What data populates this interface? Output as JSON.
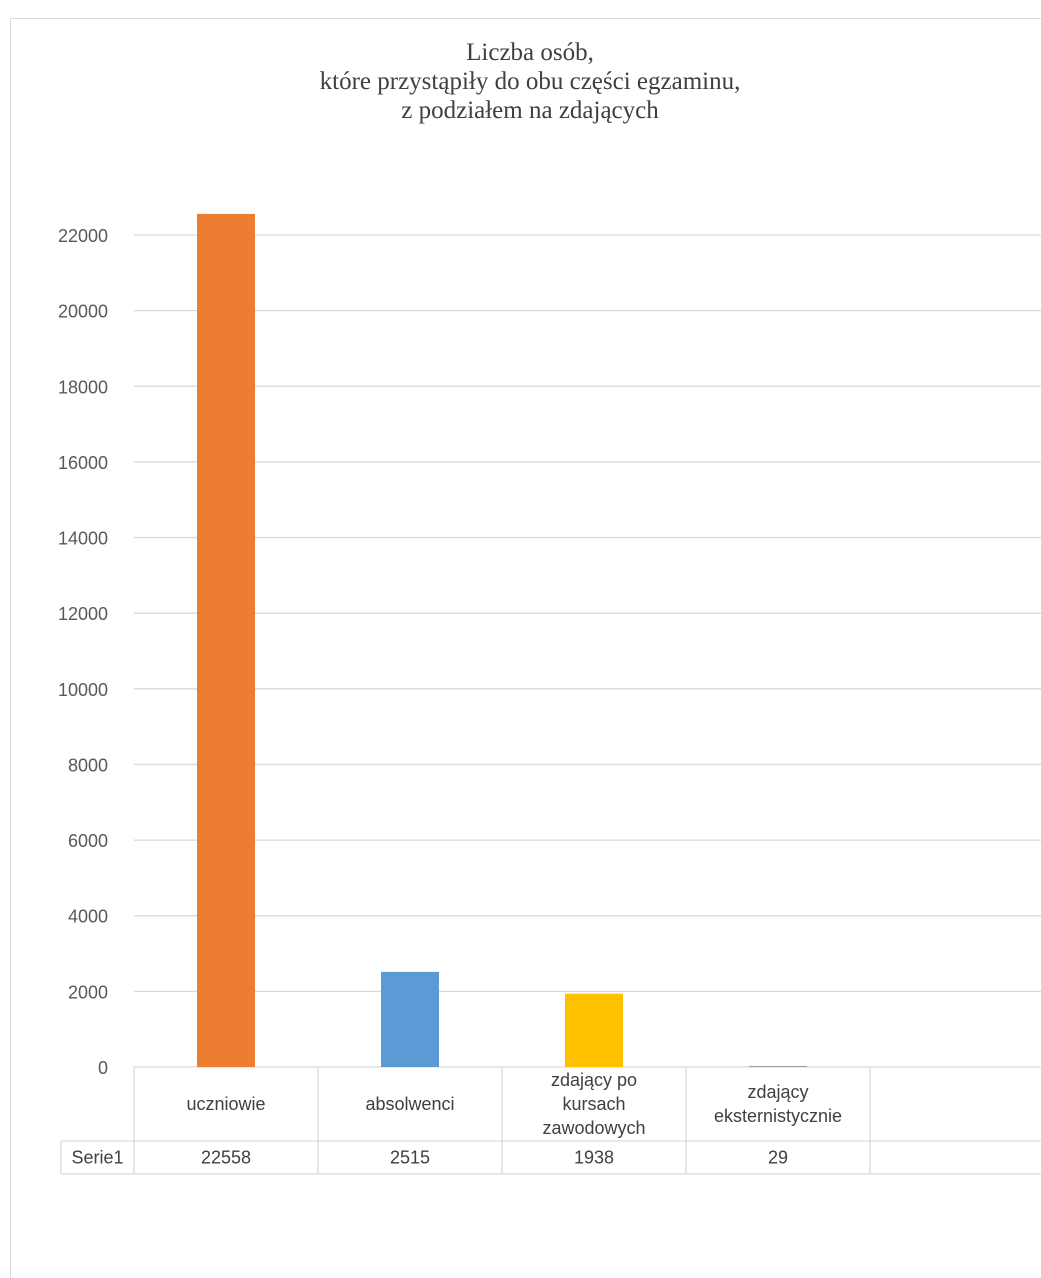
{
  "chart_data": {
    "type": "bar",
    "title_lines": [
      "Liczba osób,",
      "które przystąpiły do obu części egzaminu,",
      "z podziałem na zdających"
    ],
    "categories": [
      [
        "uczniowie"
      ],
      [
        "absolwenci"
      ],
      [
        "zdający po",
        "kursach",
        "zawodowych"
      ],
      [
        "zdający",
        "eksternistycznie"
      ]
    ],
    "series": [
      {
        "name": "Serie1",
        "values": [
          22558,
          2515,
          1938,
          29
        ],
        "value_labels": [
          "22558",
          "2515",
          "1938",
          "29"
        ]
      }
    ],
    "bar_colors": [
      "#ED7D31",
      "#5B9BD5",
      "#FFC000",
      "#A5A5A5"
    ],
    "ylim": [
      0,
      22000
    ],
    "yticks": [
      0,
      2000,
      4000,
      6000,
      8000,
      10000,
      12000,
      14000,
      16000,
      18000,
      20000,
      22000
    ],
    "grid": true,
    "data_table": true
  }
}
